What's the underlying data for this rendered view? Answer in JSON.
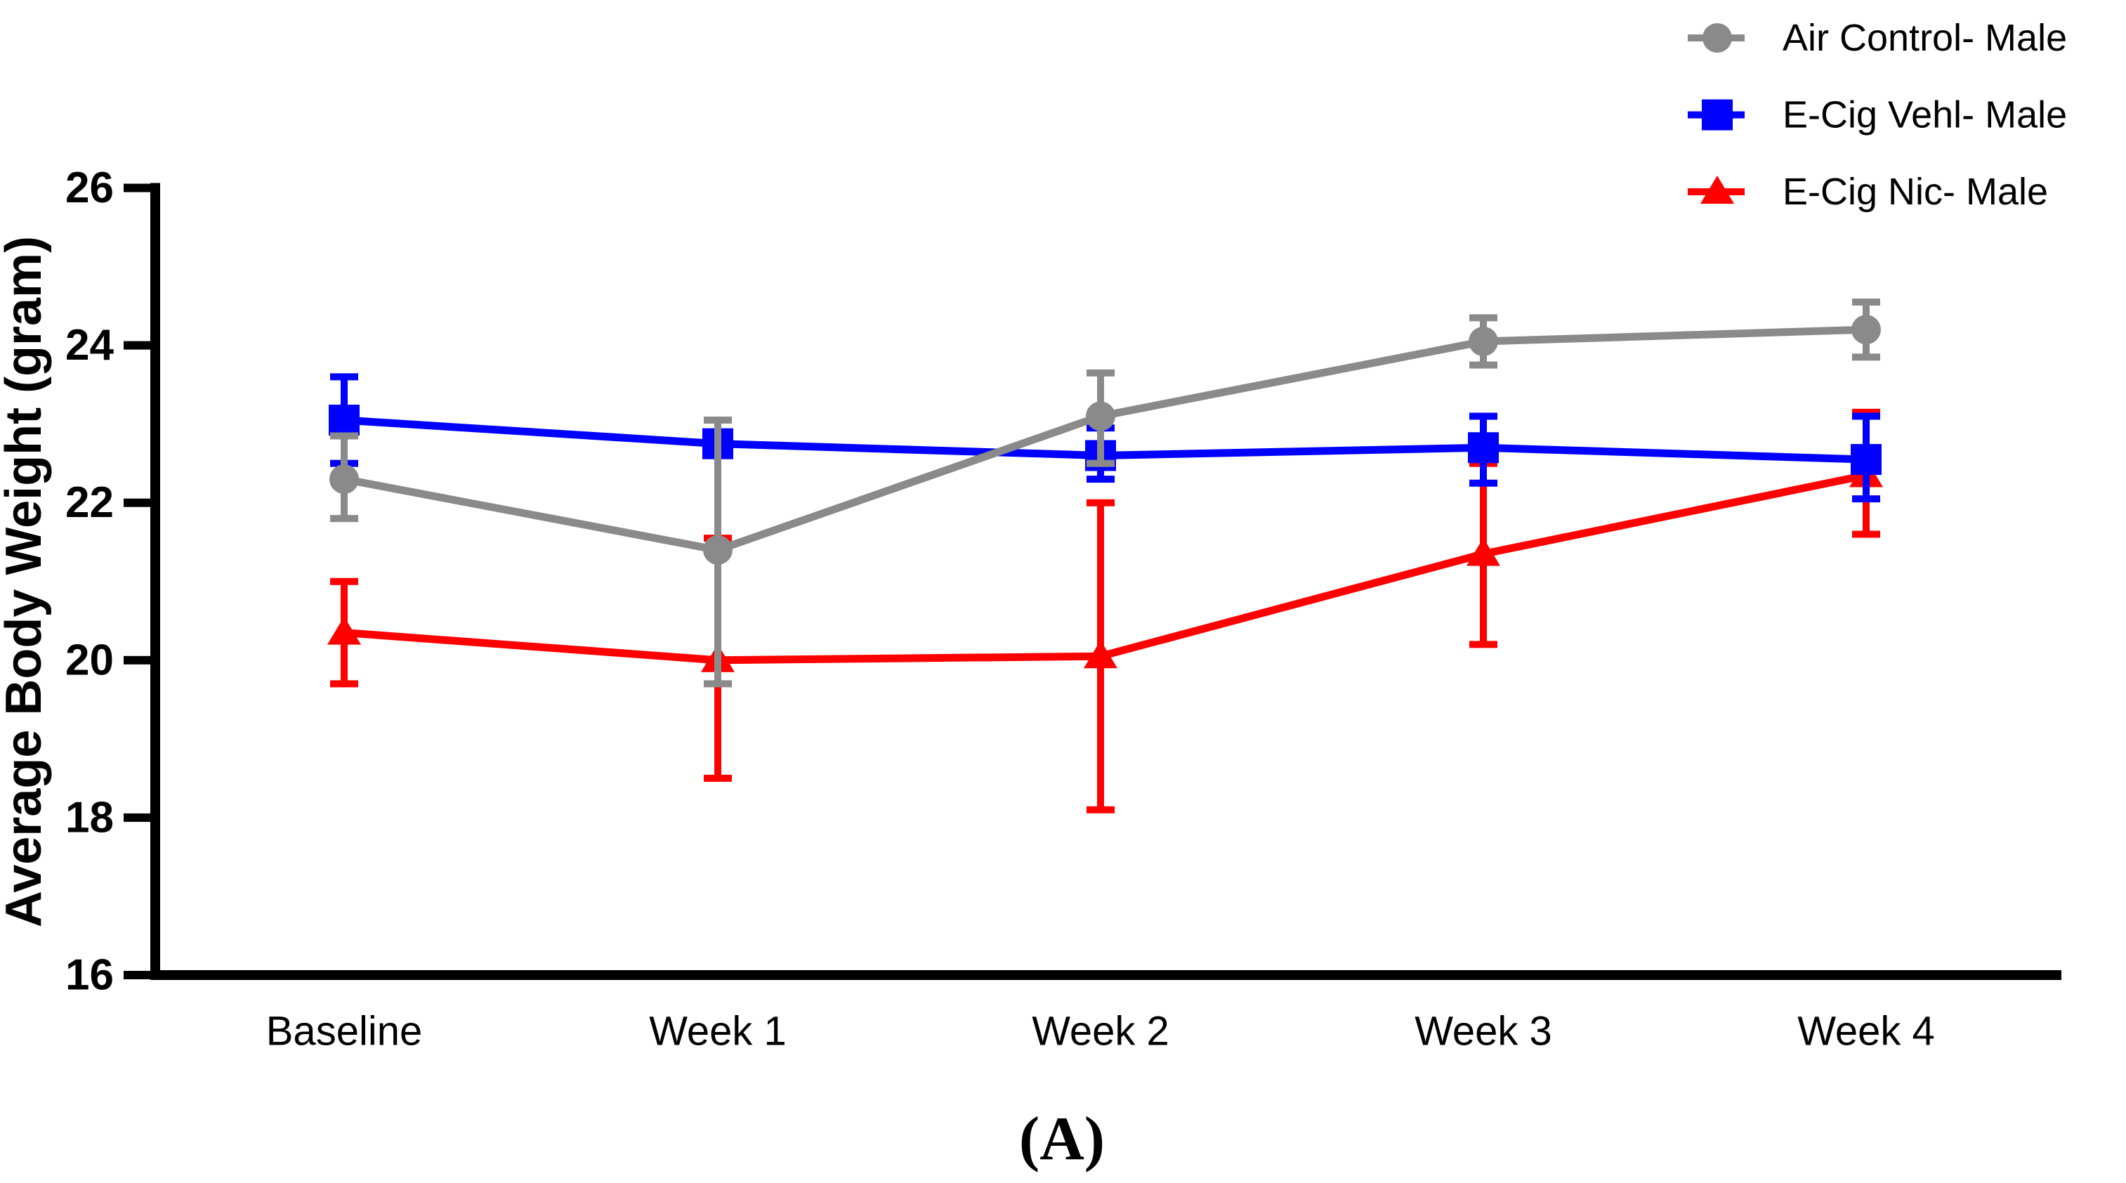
{
  "figure": {
    "caption": "(A)",
    "background": "#ffffff"
  },
  "colors": {
    "axis": "#000000",
    "air_control": "#8a8a8a",
    "ecig_vehl": "#0000ff",
    "ecig_nic": "#ff0000"
  },
  "y_axis": {
    "title": "Average Body Weight (gram)",
    "tick_labels": [
      "16",
      "18",
      "20",
      "22",
      "24",
      "26"
    ],
    "min": 16,
    "max": 26
  },
  "x_axis": {
    "categories": [
      "Baseline",
      "Week 1",
      "Week 2",
      "Week 3",
      "Week 4"
    ]
  },
  "legend": {
    "position": "top-right",
    "items": [
      {
        "label": "Air Control- Male",
        "marker": "circle",
        "color": "#8a8a8a"
      },
      {
        "label": "E-Cig Vehl- Male",
        "marker": "square",
        "color": "#0000ff"
      },
      {
        "label": "E-Cig Nic- Male",
        "marker": "triangle",
        "color": "#ff0000"
      }
    ]
  },
  "chart_data": {
    "type": "line",
    "title": "",
    "xlabel": "",
    "ylabel": "Average Body Weight (gram)",
    "ylim": [
      16,
      26
    ],
    "yticks": [
      16,
      18,
      20,
      22,
      24,
      26
    ],
    "grid": false,
    "legend_position": "top-right",
    "error_bars": "sd-caps",
    "categories": [
      "Baseline",
      "Week 1",
      "Week 2",
      "Week 3",
      "Week 4"
    ],
    "series": [
      {
        "name": "Air Control- Male",
        "marker": "circle",
        "color": "#8a8a8a",
        "values": [
          22.3,
          21.4,
          23.1,
          24.05,
          24.2
        ],
        "err_upper": [
          22.85,
          23.05,
          23.65,
          24.35,
          24.55
        ],
        "err_lower": [
          21.8,
          19.7,
          22.5,
          23.75,
          23.85
        ]
      },
      {
        "name": "E-Cig Vehl- Male",
        "marker": "square",
        "color": "#0000ff",
        "values": [
          23.05,
          22.75,
          22.6,
          22.7,
          22.55
        ],
        "err_upper": [
          23.6,
          22.85,
          22.95,
          23.1,
          23.1
        ],
        "err_lower": [
          22.5,
          22.65,
          22.3,
          22.25,
          22.05
        ]
      },
      {
        "name": "E-Cig Nic- Male",
        "marker": "triangle",
        "color": "#ff0000",
        "values": [
          20.35,
          20.0,
          20.05,
          21.35,
          22.35
        ],
        "err_upper": [
          21.0,
          21.55,
          22.0,
          22.5,
          23.15
        ],
        "err_lower": [
          19.7,
          18.5,
          18.1,
          20.2,
          21.6
        ]
      }
    ]
  }
}
